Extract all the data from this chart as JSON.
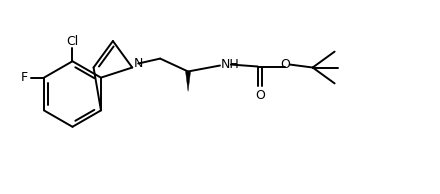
{
  "bg": "#ffffff",
  "lc": "#000000",
  "lw": 1.4,
  "fs": 9,
  "figsize": [
    4.4,
    1.94
  ],
  "dpi": 100,
  "xlim": [
    0.0,
    4.4
  ],
  "ylim": [
    0.0,
    1.94
  ]
}
